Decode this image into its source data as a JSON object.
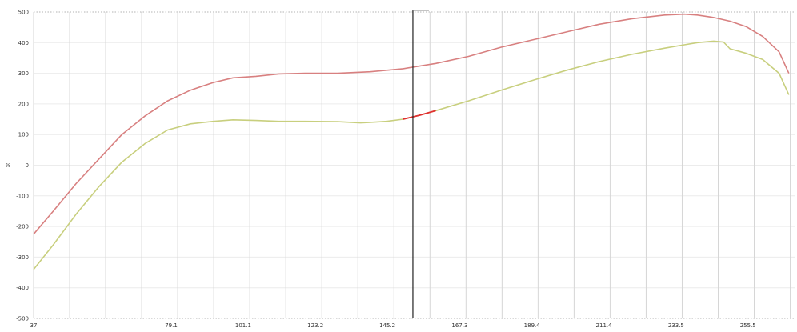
{
  "chart_data": {
    "type": "line",
    "ylabel": "%",
    "xlim": [
      37,
      270
    ],
    "ylim": [
      -500,
      500
    ],
    "x_ticks": [
      "37",
      "79.1",
      "101.1",
      "123.2",
      "145.2",
      "167.3",
      "189.4",
      "211.4",
      "233.5",
      "255.5"
    ],
    "y_ticks": [
      "500",
      "400",
      "300",
      "200",
      "100",
      "0",
      "-100",
      "-200",
      "-300",
      "-400",
      "-500"
    ],
    "grid": true,
    "cursor_x": 153,
    "colors": {
      "series1": "#d88080",
      "series2": "#c8cf7e",
      "highlight": "#e03030"
    },
    "series": [
      {
        "color": "#d88080",
        "x": [
          37,
          43,
          50,
          57,
          64,
          71,
          78,
          85,
          92,
          98,
          105,
          112,
          120,
          130,
          140,
          150,
          160,
          170,
          180,
          190,
          200,
          210,
          220,
          230,
          236,
          240,
          245,
          250,
          255,
          260,
          265,
          268
        ],
        "values": [
          -225,
          -150,
          -60,
          20,
          100,
          160,
          210,
          245,
          270,
          285,
          290,
          298,
          300,
          300,
          305,
          315,
          332,
          355,
          385,
          410,
          435,
          460,
          478,
          490,
          493,
          490,
          482,
          470,
          452,
          420,
          370,
          300
        ]
      },
      {
        "color": "#c8cf7e",
        "x": [
          37,
          43,
          50,
          57,
          64,
          71,
          78,
          85,
          92,
          98,
          105,
          112,
          120,
          130,
          137,
          140,
          145,
          150,
          155,
          160,
          170,
          180,
          190,
          200,
          210,
          220,
          230,
          236,
          240,
          245,
          248,
          250,
          255,
          260,
          265,
          268
        ],
        "values": [
          -340,
          -260,
          -160,
          -70,
          10,
          70,
          115,
          135,
          143,
          148,
          146,
          143,
          143,
          142,
          138,
          140,
          143,
          150,
          163,
          178,
          210,
          245,
          278,
          310,
          338,
          362,
          382,
          393,
          400,
          405,
          402,
          380,
          365,
          345,
          300,
          230
        ]
      }
    ]
  }
}
